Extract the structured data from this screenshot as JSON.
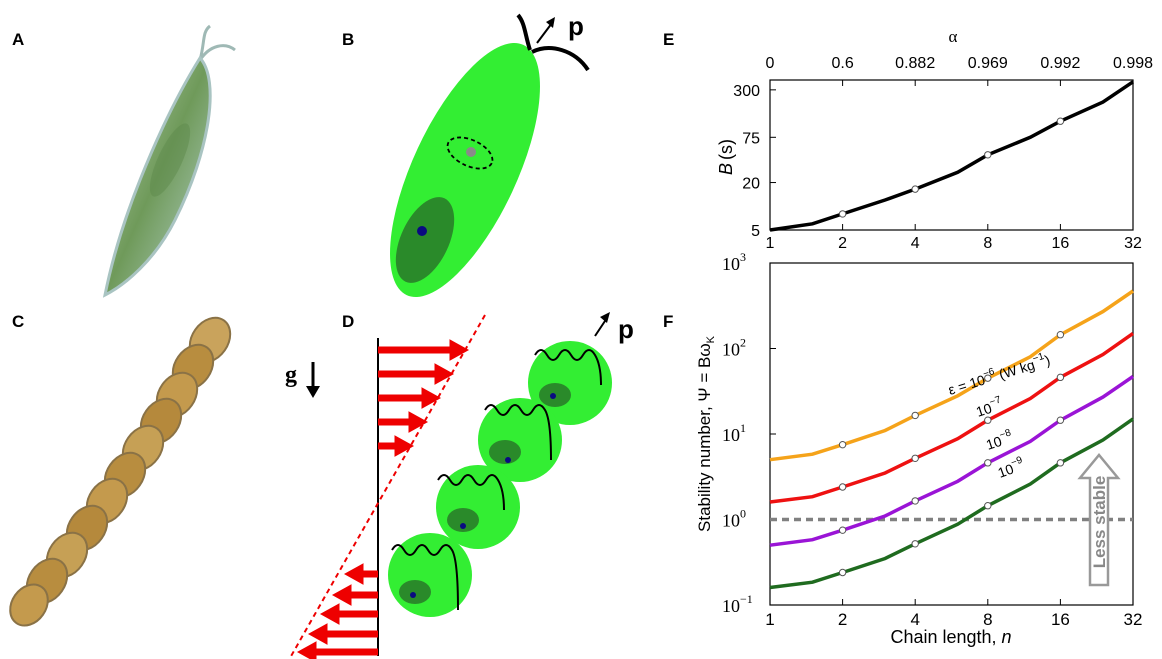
{
  "panels": {
    "A": "A",
    "B": "B",
    "C": "C",
    "D": "D",
    "E": "E",
    "F": "F"
  },
  "panelB": {
    "vector_label": "p"
  },
  "panelD": {
    "vector_label": "p",
    "gravity_label": "g"
  },
  "colors": {
    "cell_green": "#33ee33",
    "nucleus": "#0a0a80",
    "shear_arrow": "#ee0000",
    "orange": "#f5a31a",
    "red": "#ee1111",
    "purple": "#9a14d6",
    "darkgreen": "#1f6b1f",
    "dash_gray": "#808080"
  },
  "chart_data": [
    {
      "type": "line",
      "panel": "E",
      "ylabel_var": "B",
      "ylabel_unit": "(s)",
      "top_axis_label": "α",
      "top_ticks": [
        {
          "n": 1,
          "label": "0"
        },
        {
          "n": 2,
          "label": "0.6"
        },
        {
          "n": 4,
          "label": "0.882"
        },
        {
          "n": 8,
          "label": "0.969"
        },
        {
          "n": 16,
          "label": "0.992"
        },
        {
          "n": 32,
          "label": "0.998"
        }
      ],
      "x_scale": "log2",
      "y_scale": "log",
      "xlim": [
        1,
        32
      ],
      "ylim": [
        5,
        400
      ],
      "x_ticks": [
        1,
        2,
        4,
        8,
        16,
        32
      ],
      "x_tick_labels": [
        "1",
        "2",
        "4",
        "8",
        "16",
        "32"
      ],
      "y_ticks": [
        5,
        20,
        75,
        300
      ],
      "y_tick_labels": [
        "5",
        "20",
        "75",
        "300"
      ],
      "series": [
        {
          "color": "#000000",
          "x": [
            1,
            1.5,
            2,
            3,
            4,
            6,
            8,
            12,
            16,
            24,
            32
          ],
          "y": [
            5,
            6,
            8,
            12,
            16.5,
            27,
            45,
            75,
            120,
            210,
            380
          ],
          "markers_x": [
            2,
            4,
            8,
            16
          ],
          "markers_y": [
            8,
            16.5,
            45,
            120
          ]
        }
      ]
    },
    {
      "type": "line",
      "panel": "F",
      "ylabel": "Stability number, Ψ = Bω",
      "ylabel_sub": "K",
      "xlabel": "Chain length, ",
      "xlabel_var": "n",
      "x_scale": "log2",
      "y_scale": "log",
      "xlim": [
        1,
        32
      ],
      "ylim": [
        0.1,
        1000
      ],
      "x_ticks": [
        1,
        2,
        4,
        8,
        16,
        32
      ],
      "x_tick_labels": [
        "1",
        "2",
        "4",
        "8",
        "16",
        "32"
      ],
      "y_ticks": [
        0.1,
        1,
        10,
        100,
        1000
      ],
      "y_tick_base": "10",
      "y_tick_exps": [
        "−1",
        "0",
        "1",
        "2",
        "3"
      ],
      "reference_line": 1,
      "annotation": "Less stable",
      "series_labels": [
        {
          "prefix": "ε = 10",
          "exp": "−6",
          "suffix": " (W kg",
          "suffix_exp": "−1",
          "close": ")"
        },
        {
          "prefix": "10",
          "exp": "−7"
        },
        {
          "prefix": "10",
          "exp": "−8"
        },
        {
          "prefix": "10",
          "exp": "−9"
        }
      ],
      "series": [
        {
          "color": "#f5a31a",
          "x": [
            1,
            1.5,
            2,
            3,
            4,
            6,
            8,
            12,
            16,
            24,
            32
          ],
          "y": [
            5.0,
            5.8,
            7.5,
            11,
            16.5,
            28,
            45,
            80,
            145,
            270,
            470
          ],
          "markers_x": [
            2,
            4,
            8,
            16
          ],
          "markers_y": [
            7.5,
            16.5,
            45,
            145
          ]
        },
        {
          "color": "#ee1111",
          "x": [
            1,
            1.5,
            2,
            3,
            4,
            6,
            8,
            12,
            16,
            24,
            32
          ],
          "y": [
            1.6,
            1.85,
            2.4,
            3.5,
            5.2,
            8.8,
            14.5,
            26,
            46,
            85,
            150
          ],
          "markers_x": [
            2,
            4,
            8,
            16
          ],
          "markers_y": [
            2.4,
            5.2,
            14.5,
            46
          ]
        },
        {
          "color": "#9a14d6",
          "x": [
            1,
            1.5,
            2,
            3,
            4,
            6,
            8,
            12,
            16,
            24,
            32
          ],
          "y": [
            0.5,
            0.58,
            0.75,
            1.1,
            1.65,
            2.8,
            4.6,
            8.2,
            14.5,
            27,
            47
          ],
          "markers_x": [
            2,
            4,
            8,
            16
          ],
          "markers_y": [
            0.75,
            1.65,
            4.6,
            14.5
          ]
        },
        {
          "color": "#1f6b1f",
          "x": [
            1,
            1.5,
            2,
            3,
            4,
            6,
            8,
            12,
            16,
            24,
            32
          ],
          "y": [
            0.16,
            0.185,
            0.24,
            0.35,
            0.52,
            0.88,
            1.45,
            2.6,
            4.6,
            8.5,
            15
          ],
          "markers_x": [
            2,
            4,
            8,
            16
          ],
          "markers_y": [
            0.24,
            0.52,
            1.45,
            4.6
          ]
        }
      ]
    }
  ]
}
